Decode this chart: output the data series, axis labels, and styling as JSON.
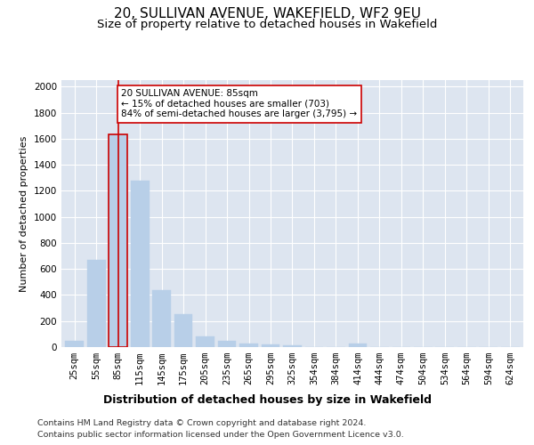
{
  "title1": "20, SULLIVAN AVENUE, WAKEFIELD, WF2 9EU",
  "title2": "Size of property relative to detached houses in Wakefield",
  "xlabel": "Distribution of detached houses by size in Wakefield",
  "ylabel": "Number of detached properties",
  "categories": [
    "25sqm",
    "55sqm",
    "85sqm",
    "115sqm",
    "145sqm",
    "175sqm",
    "205sqm",
    "235sqm",
    "265sqm",
    "295sqm",
    "325sqm",
    "354sqm",
    "384sqm",
    "414sqm",
    "444sqm",
    "474sqm",
    "504sqm",
    "534sqm",
    "564sqm",
    "594sqm",
    "624sqm"
  ],
  "values": [
    50,
    670,
    1630,
    1280,
    440,
    255,
    80,
    45,
    30,
    20,
    13,
    0,
    0,
    25,
    0,
    0,
    0,
    0,
    0,
    0,
    0
  ],
  "bar_color": "#b8cfe8",
  "bar_edge_color": "#b8cfe8",
  "highlight_bar_index": 2,
  "highlight_line_color": "#cc0000",
  "annotation_text": "20 SULLIVAN AVENUE: 85sqm\n← 15% of detached houses are smaller (703)\n84% of semi-detached houses are larger (3,795) →",
  "annotation_box_color": "#ffffff",
  "annotation_box_edge": "#cc0000",
  "ylim": [
    0,
    2050
  ],
  "yticks": [
    0,
    200,
    400,
    600,
    800,
    1000,
    1200,
    1400,
    1600,
    1800,
    2000
  ],
  "plot_bg_color": "#dde5f0",
  "footer1": "Contains HM Land Registry data © Crown copyright and database right 2024.",
  "footer2": "Contains public sector information licensed under the Open Government Licence v3.0.",
  "title1_fontsize": 11,
  "title2_fontsize": 9.5,
  "xlabel_fontsize": 9,
  "ylabel_fontsize": 8,
  "tick_fontsize": 7.5,
  "footer_fontsize": 6.8,
  "annot_fontsize": 7.5
}
